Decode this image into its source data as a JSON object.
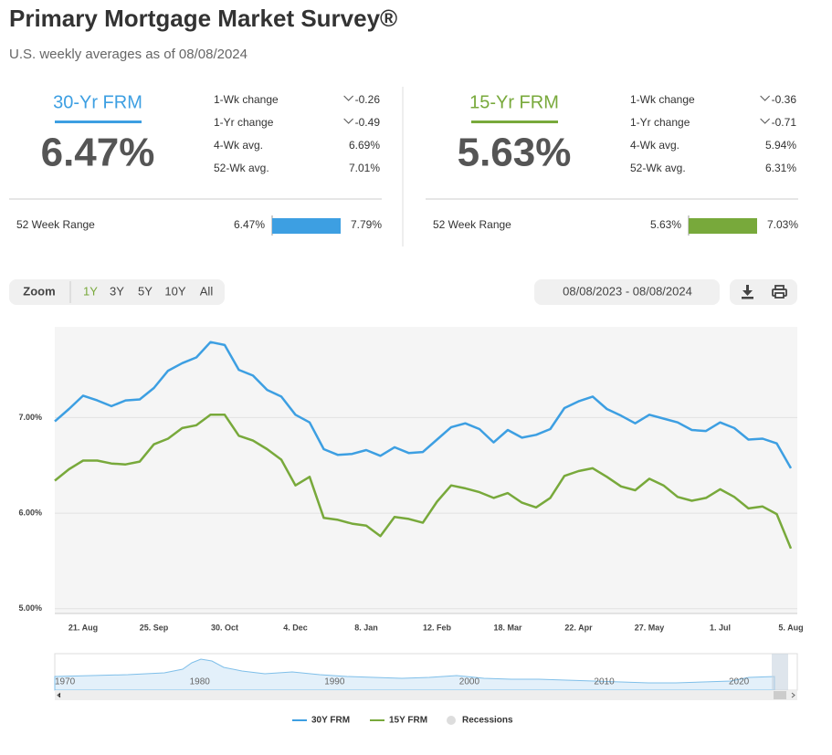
{
  "header": {
    "title": "Primary Mortgage Market Survey®",
    "subtitle": "U.S. weekly averages as of 08/08/2024"
  },
  "panels": [
    {
      "name": "30-Yr FRM",
      "rate": "6.47%",
      "color": "#3d9fe2",
      "stats": [
        {
          "label": "1-Wk change",
          "value": "-0.26",
          "arrow": "down"
        },
        {
          "label": "1-Yr change",
          "value": "-0.49",
          "arrow": "down"
        },
        {
          "label": "4-Wk avg.",
          "value": "6.69%"
        },
        {
          "label": "52-Wk avg.",
          "value": "7.01%"
        }
      ],
      "range_label": "52 Week Range",
      "range_low": "6.47%",
      "range_high": "7.79%"
    },
    {
      "name": "15-Yr FRM",
      "rate": "5.63%",
      "color": "#78a93b",
      "stats": [
        {
          "label": "1-Wk change",
          "value": "-0.36",
          "arrow": "down"
        },
        {
          "label": "1-Yr change",
          "value": "-0.71",
          "arrow": "down"
        },
        {
          "label": "4-Wk avg.",
          "value": "5.94%"
        },
        {
          "label": "52-Wk avg.",
          "value": "6.31%"
        }
      ],
      "range_label": "52 Week Range",
      "range_low": "5.63%",
      "range_high": "7.03%"
    }
  ],
  "controls": {
    "zoom": "Zoom",
    "periods": [
      "1Y",
      "3Y",
      "5Y",
      "10Y",
      "All"
    ],
    "active_period": 0,
    "date_range": "08/08/2023 - 08/08/2024"
  },
  "chart_data": {
    "type": "line",
    "categories": [
      null,
      null,
      "21. Aug",
      null,
      null,
      null,
      null,
      "25. Sep",
      null,
      null,
      null,
      null,
      "30. Oct",
      null,
      null,
      null,
      null,
      "4. Dec",
      null,
      null,
      null,
      null,
      "8. Jan",
      null,
      null,
      null,
      null,
      "12. Feb",
      null,
      null,
      null,
      null,
      "18. Mar",
      null,
      null,
      null,
      null,
      "22. Apr",
      null,
      null,
      null,
      null,
      "27. May",
      null,
      null,
      null,
      null,
      "1. Jul",
      null,
      null,
      null,
      null,
      "5. Aug"
    ],
    "series": [
      {
        "name": "30Y FRM",
        "color": "#3d9fe2",
        "values": [
          6.96,
          7.09,
          7.23,
          7.18,
          7.12,
          7.18,
          7.19,
          7.31,
          7.49,
          7.57,
          7.63,
          7.79,
          7.76,
          7.5,
          7.44,
          7.29,
          7.22,
          7.03,
          6.95,
          6.67,
          6.61,
          6.62,
          6.66,
          6.6,
          6.69,
          6.63,
          6.64,
          6.77,
          6.9,
          6.94,
          6.88,
          6.74,
          6.87,
          6.79,
          6.82,
          6.88,
          7.1,
          7.17,
          7.22,
          7.09,
          7.02,
          6.94,
          7.03,
          6.99,
          6.95,
          6.87,
          6.86,
          6.95,
          6.89,
          6.77,
          6.78,
          6.73,
          6.47
        ]
      },
      {
        "name": "15Y FRM",
        "color": "#78a93b",
        "values": [
          6.34,
          6.46,
          6.55,
          6.55,
          6.52,
          6.51,
          6.54,
          6.72,
          6.78,
          6.89,
          6.92,
          7.03,
          7.03,
          6.81,
          6.76,
          6.67,
          6.56,
          6.29,
          6.38,
          5.95,
          5.93,
          5.89,
          5.87,
          5.76,
          5.96,
          5.94,
          5.9,
          6.12,
          6.29,
          6.26,
          6.22,
          6.16,
          6.21,
          6.11,
          6.06,
          6.16,
          6.39,
          6.44,
          6.47,
          6.38,
          6.28,
          6.24,
          6.36,
          6.29,
          6.17,
          6.13,
          6.16,
          6.25,
          6.17,
          6.05,
          6.07,
          5.99,
          5.63
        ]
      }
    ],
    "ylim": [
      4.95,
      7.95
    ],
    "yticks": [
      {
        "value": 5,
        "label": "5.00%"
      },
      {
        "value": 6,
        "label": "6.00%"
      },
      {
        "value": 7,
        "label": "7.00%"
      }
    ],
    "grid": true
  },
  "navigator": {
    "labels": [
      "1970",
      "1980",
      "1990",
      "2000",
      "2010",
      "2020"
    ]
  },
  "legend_extra": "Recessions"
}
